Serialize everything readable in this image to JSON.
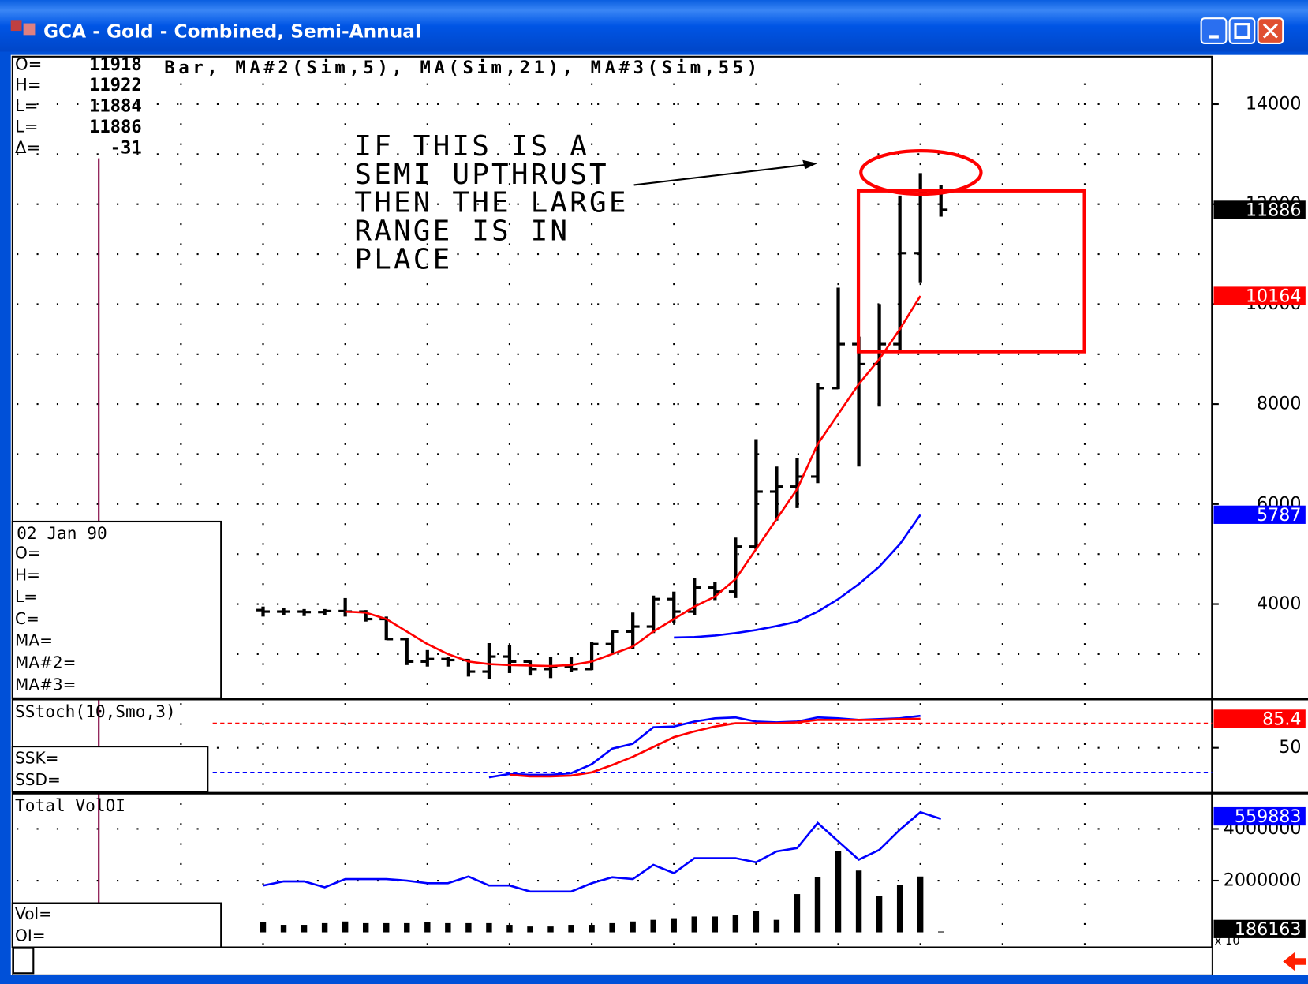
{
  "window": {
    "title": "GCA - Gold - Combined, Semi-Annual"
  },
  "chart_data": [
    {
      "type": "ohlc",
      "header": "Bar, MA#2(Sim,5), MA(Sim,21), MA#3(Sim,55)",
      "readout": [
        {
          "label": "O=",
          "value": 11918
        },
        {
          "label": "H=",
          "value": 11922
        },
        {
          "label": "L=",
          "value": 11884
        },
        {
          "label": "L=",
          "value": 11886
        },
        {
          "label": "Δ=",
          "value": -31
        }
      ],
      "data_box": {
        "date": "02 Jan 90",
        "labels": [
          "O=",
          "H=",
          "L=",
          "C=",
          "MA=",
          "MA#2=",
          "MA#3="
        ]
      },
      "annotation": [
        "IF THIS IS A",
        "SEMI UPTHRUST",
        "THEN THE LARGE",
        "RANGE IS IN",
        "PLACE"
      ],
      "cursor_x": 1990,
      "x": [
        1994,
        1994.5,
        1995,
        1995.5,
        1996,
        1996.5,
        1997,
        1997.5,
        1998,
        1998.5,
        1999,
        1999.5,
        2000,
        2000.5,
        2001,
        2001.5,
        2002,
        2002.5,
        2003,
        2003.5,
        2004,
        2004.5,
        2005,
        2005.5,
        2006,
        2006.5,
        2007,
        2007.5,
        2008,
        2008.5,
        2009,
        2009.5,
        2010,
        2010.5
      ],
      "open": [
        3880,
        3850,
        3850,
        3840,
        3860,
        3850,
        3700,
        3300,
        2850,
        2900,
        2880,
        2650,
        2950,
        2850,
        2700,
        2750,
        2700,
        3200,
        3450,
        3550,
        4100,
        3850,
        4330,
        4250,
        5150,
        6250,
        6350,
        6550,
        8320,
        9200,
        8800,
        9200,
        11020,
        12250
      ],
      "high": [
        3950,
        3920,
        3900,
        3900,
        4120,
        3880,
        3750,
        3330,
        3080,
        2950,
        2900,
        3220,
        3180,
        2870,
        2950,
        2950,
        3250,
        3470,
        3830,
        4170,
        4250,
        4530,
        4450,
        5330,
        7300,
        6750,
        6920,
        8420,
        10330,
        9350,
        10000,
        12170,
        12620,
        12380
      ],
      "low": [
        3750,
        3780,
        3760,
        3780,
        3750,
        3650,
        3280,
        2780,
        2750,
        2750,
        2550,
        2500,
        2620,
        2570,
        2520,
        2650,
        2680,
        3000,
        3100,
        3420,
        3630,
        3780,
        4080,
        4120,
        5100,
        5670,
        5920,
        6420,
        8300,
        6750,
        7950,
        9080,
        10420,
        11750
      ],
      "close": [
        3850,
        3850,
        3840,
        3860,
        3850,
        3700,
        3300,
        2850,
        2900,
        2880,
        2650,
        2950,
        2850,
        2700,
        2750,
        2700,
        3200,
        3450,
        3550,
        4100,
        3850,
        4330,
        4250,
        5150,
        6250,
        6350,
        6550,
        8320,
        9200,
        8800,
        9200,
        11020,
        12250,
        11886
      ],
      "bar_color": "#000000",
      "series": [
        {
          "color": "#ff0000",
          "values": [
            null,
            null,
            null,
            null,
            3850,
            3830,
            3700,
            3450,
            3200,
            3000,
            2850,
            2800,
            2780,
            2770,
            2760,
            2780,
            2850,
            3000,
            3150,
            3450,
            3700,
            3950,
            4150,
            4500,
            5100,
            5700,
            6300,
            7200,
            7800,
            8400,
            8900,
            9500,
            10164,
            null
          ]
        },
        {
          "color": "#0000ff",
          "values": [
            null,
            null,
            null,
            null,
            null,
            null,
            null,
            null,
            null,
            null,
            null,
            null,
            null,
            null,
            null,
            null,
            null,
            null,
            null,
            null,
            3330,
            3340,
            3370,
            3420,
            3480,
            3560,
            3650,
            3850,
            4100,
            4400,
            4750,
            5200,
            5787,
            null
          ]
        }
      ],
      "xlim": [
        1987.9,
        2017.1
      ],
      "xticks": [
        1992,
        1996,
        2000,
        2004,
        2008,
        2012
      ],
      "minor_xticks": [
        1994,
        1998,
        2002,
        2006,
        2010,
        2014
      ],
      "ylim": [
        2117,
        14950
      ],
      "yticks": [
        4000,
        6000,
        8000,
        10000,
        12000,
        14000
      ],
      "minor_yticks": [
        3000,
        5000,
        7000,
        9000,
        11000,
        13000
      ],
      "grid": true
    },
    {
      "type": "line",
      "title": "SStoch(10,Smo,3)",
      "data_box": {
        "labels": [
          "SSK=",
          "SSD="
        ]
      },
      "series": [
        {
          "color": "#0000ff",
          "values": [
            null,
            null,
            null,
            null,
            null,
            null,
            null,
            null,
            null,
            null,
            null,
            14,
            18,
            17,
            17,
            19,
            30,
            49,
            55,
            75,
            76,
            82,
            86,
            87,
            82,
            81,
            82,
            87,
            86,
            84,
            85,
            86,
            89,
            null
          ]
        },
        {
          "color": "#ff0000",
          "values": [
            null,
            null,
            null,
            null,
            null,
            null,
            null,
            null,
            null,
            null,
            null,
            null,
            17,
            15,
            15,
            16,
            20,
            29,
            39,
            51,
            63,
            70,
            76,
            80,
            80,
            80,
            81,
            84,
            84,
            84,
            84,
            85,
            85.4,
            null
          ]
        }
      ],
      "ref_lines": [
        {
          "value": 80,
          "color": "#ff0000"
        },
        {
          "value": 20,
          "color": "#0000ff"
        }
      ],
      "ylim": [
        -3.4,
        108.5
      ],
      "yticks": [
        50
      ]
    },
    {
      "type": "bar",
      "title": "Total VolOI",
      "data_box": {
        "labels": [
          "Vol=",
          "OI="
        ]
      },
      "series": [
        {
          "color": "#000000",
          "style": "bar",
          "values": [
            390000,
            290000,
            290000,
            355000,
            420000,
            355000,
            355000,
            355000,
            390000,
            355000,
            355000,
            355000,
            290000,
            226000,
            226000,
            290000,
            290000,
            355000,
            420000,
            484000,
            548000,
            613000,
            613000,
            677000,
            839000,
            484000,
            1480000,
            2130000,
            3130000,
            2390000,
            1420000,
            1840000,
            2160000,
            32000
          ]
        },
        {
          "color": "#0000ff",
          "style": "line",
          "values": [
            1810000,
            1970000,
            1970000,
            1740000,
            2060000,
            2060000,
            2060000,
            2000000,
            1900000,
            1900000,
            2160000,
            1810000,
            1810000,
            1580000,
            1580000,
            1580000,
            1900000,
            2130000,
            2060000,
            2610000,
            2290000,
            2870000,
            2870000,
            2870000,
            2710000,
            3130000,
            3260000,
            4230000,
            3520000,
            2810000,
            3190000,
            3970000,
            4650000,
            4390000
          ]
        }
      ],
      "tags": [
        "559883",
        "186163"
      ],
      "scale_note": "x 10",
      "ylim": [
        -580000,
        5350000
      ],
      "yticks": [
        2000000,
        4000000
      ]
    }
  ]
}
